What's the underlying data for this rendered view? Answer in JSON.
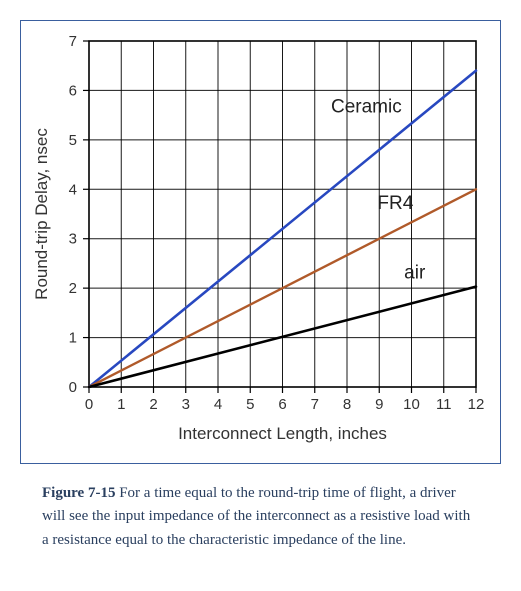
{
  "chart": {
    "type": "line",
    "xlabel": "Interconnect Length, inches",
    "ylabel": "Round-trip Delay, nsec",
    "label_fontsize": 17,
    "tick_fontsize": 15,
    "xlim": [
      0,
      12
    ],
    "ylim": [
      0,
      7
    ],
    "xtick_step": 1,
    "ytick_step": 1,
    "background_color": "#ffffff",
    "grid_color": "#000000",
    "axis_color": "#000000",
    "border_color": "#3a5f9e",
    "text_color": "#333333",
    "series_label_fontsize": 19,
    "series": [
      {
        "name": "Ceramic",
        "color": "#2848c0",
        "line_width": 2.6,
        "points": [
          [
            0,
            0
          ],
          [
            12,
            6.4
          ]
        ],
        "label_pos": [
          8.6,
          5.55
        ]
      },
      {
        "name": "FR4",
        "color": "#b05a2a",
        "line_width": 2.4,
        "points": [
          [
            0,
            0
          ],
          [
            12,
            4.0
          ]
        ],
        "label_pos": [
          9.5,
          3.6
        ]
      },
      {
        "name": "air",
        "color": "#000000",
        "line_width": 2.6,
        "points": [
          [
            0,
            0
          ],
          [
            12,
            2.03
          ]
        ],
        "label_pos": [
          10.1,
          2.2
        ]
      }
    ]
  },
  "caption": {
    "label": "Figure 7-15",
    "text": " For a time equal to the round-trip time of flight, a driver will see the input impedance of the interconnect as a resistive load with a resistance equal to the characteristic impedance of the line.",
    "color": "#2a3f5f",
    "fontsize": 15
  }
}
